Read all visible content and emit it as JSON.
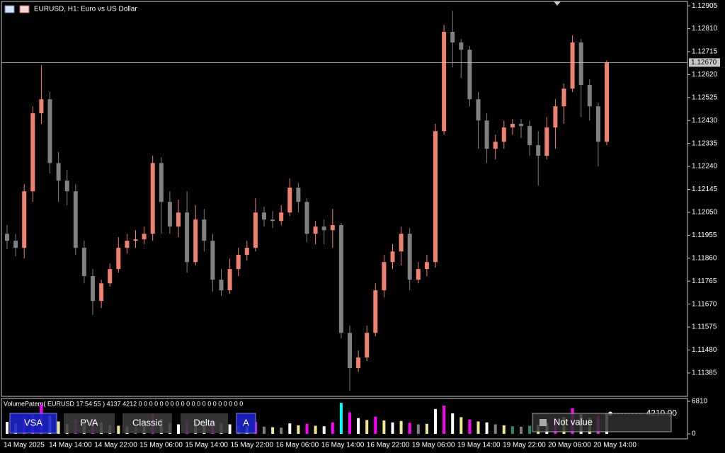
{
  "header": {
    "title": "EURUSD, H1:  Euro vs US Dollar"
  },
  "chart_data": {
    "type": "candlestick",
    "x_labels": [
      "14 May 2025",
      "14 May 14:00",
      "14 May 22:00",
      "15 May 06:00",
      "15 May 14:00",
      "15 May 22:00",
      "16 May 06:00",
      "16 May 14:00",
      "16 May 22:00",
      "19 May 06:00",
      "19 May 14:00",
      "19 May 22:00",
      "20 May 06:00",
      "20 May 14:00"
    ],
    "open": [
      1.11961,
      1.11932,
      1.11903,
      1.12137,
      1.1246,
      1.12518,
      1.12254,
      1.12181,
      1.12137,
      1.11903,
      1.11786,
      1.11683,
      1.11756,
      1.11815,
      1.11903,
      1.11932,
      1.11938,
      1.11961,
      1.12254,
      1.12093,
      1.11991,
      1.12049,
      1.11844,
      1.1202,
      1.11932,
      1.11771,
      1.11727,
      1.11815,
      1.11874,
      1.11903,
      1.12049,
      1.1202,
      1.12014,
      1.12049,
      1.12152,
      1.12093,
      1.11961,
      1.11991,
      1.11976,
      1.11997,
      1.11551,
      1.11405,
      1.11449,
      1.11551,
      1.11727,
      1.11844,
      1.11888,
      1.11961,
      1.11771,
      1.11815,
      1.11844,
      1.12386,
      1.12797,
      1.12753,
      1.12723,
      1.12518,
      1.1243,
      1.12313,
      1.12342,
      1.12401,
      1.12416,
      1.12407,
      1.12328,
      1.12284,
      1.12401,
      1.12489,
      1.12562,
      1.12753,
      1.12577,
      1.12489,
      1.12342
    ],
    "high": [
      1.11997,
      1.11961,
      1.12166,
      1.12489,
      1.12659,
      1.12548,
      1.12299,
      1.12225,
      1.12166,
      1.11932,
      1.11815,
      1.11771,
      1.11838,
      1.11947,
      1.11961,
      1.11976,
      1.11991,
      1.12284,
      1.12278,
      1.12137,
      1.12102,
      1.12137,
      1.12079,
      1.12064,
      1.11961,
      1.11815,
      1.11859,
      1.11903,
      1.11932,
      1.12108,
      1.12073,
      1.12055,
      1.12079,
      1.1219,
      1.12172,
      1.12108,
      1.12014,
      1.1202,
      1.12064,
      1.12006,
      1.11581,
      1.11478,
      1.11581,
      1.11756,
      1.11874,
      1.11918,
      1.11991,
      1.11985,
      1.11844,
      1.11874,
      1.12416,
      1.12826,
      1.12884,
      1.12767,
      1.12738,
      1.12548,
      1.1246,
      1.12371,
      1.1243,
      1.12436,
      1.12436,
      1.1243,
      1.12386,
      1.12445,
      1.12518,
      1.12583,
      1.12782,
      1.12767,
      1.126,
      1.12504,
      1.12679
    ],
    "low": [
      1.11897,
      1.11868,
      1.11859,
      1.12093,
      1.12416,
      1.12211,
      1.12093,
      1.12079,
      1.11874,
      1.11756,
      1.11625,
      1.11654,
      1.11742,
      1.118,
      1.11879,
      1.11903,
      1.11918,
      1.11932,
      1.11961,
      1.11961,
      1.11947,
      1.118,
      1.1183,
      1.11888,
      1.11721,
      1.11704,
      1.11713,
      1.11786,
      1.1185,
      1.11888,
      1.11991,
      1.11985,
      1.11997,
      1.12035,
      1.12049,
      1.11926,
      1.11918,
      1.11918,
      1.11903,
      1.11528,
      1.11311,
      1.1139,
      1.11434,
      1.11537,
      1.11698,
      1.11815,
      1.1183,
      1.11727,
      1.11756,
      1.11786,
      1.11821,
      1.12371,
      1.1265,
      1.12606,
      1.12489,
      1.12313,
      1.12254,
      1.12269,
      1.12313,
      1.12371,
      1.12357,
      1.12284,
      1.12161,
      1.12269,
      1.12313,
      1.12416,
      1.12548,
      1.12445,
      1.1243,
      1.1224,
      1.12328
    ],
    "close": [
      1.11932,
      1.11903,
      1.12137,
      1.1246,
      1.12518,
      1.12254,
      1.12181,
      1.12137,
      1.11903,
      1.11786,
      1.11683,
      1.11756,
      1.11815,
      1.11903,
      1.11932,
      1.11938,
      1.11961,
      1.12254,
      1.12093,
      1.11991,
      1.12049,
      1.11844,
      1.1202,
      1.11932,
      1.11771,
      1.11727,
      1.11815,
      1.11874,
      1.11903,
      1.12049,
      1.1202,
      1.12014,
      1.12049,
      1.12152,
      1.12093,
      1.11961,
      1.11991,
      1.11976,
      1.11997,
      1.11551,
      1.11405,
      1.11449,
      1.11551,
      1.11727,
      1.11844,
      1.11888,
      1.11961,
      1.11771,
      1.11815,
      1.11844,
      1.12386,
      1.12797,
      1.12753,
      1.12723,
      1.12518,
      1.1243,
      1.12313,
      1.12342,
      1.12401,
      1.12416,
      1.12407,
      1.12328,
      1.12284,
      1.12401,
      1.12489,
      1.12562,
      1.12753,
      1.12577,
      1.12489,
      1.12342,
      1.1267
    ],
    "up_color": "#f08070",
    "down_color": "#808080",
    "ylim": [
      1.11288,
      1.12923
    ],
    "yticks": [
      1.12905,
      {
        "value": 1.1281,
        "label": "1.12810"
      },
      1.12715,
      {
        "value": 1.1262,
        "label": "1.12620"
      },
      1.12525,
      {
        "value": 1.1243,
        "label": "1.12430"
      },
      1.12335,
      {
        "value": 1.1224,
        "label": "1.12240"
      },
      1.12145,
      {
        "value": 1.1205,
        "label": "1.12050"
      },
      1.11955,
      {
        "value": 1.1186,
        "label": "1.11860"
      },
      1.11765,
      {
        "value": 1.1167,
        "label": "1.11670"
      },
      1.11575,
      {
        "value": 1.1148,
        "label": "1.11480"
      },
      1.11385
    ],
    "current_price": {
      "value": 1.1267,
      "label": "1.12670"
    }
  },
  "indicator": {
    "label": "VolumePatern( EURUSD 17:54:55 ) 4137 4212 0 0 0 0 0 0 0 0 0 0 0 0 0 0 0 0 0 0 0 0",
    "volumes": [
      2500,
      2200,
      3400,
      4100,
      6200,
      3800,
      2600,
      2100,
      3000,
      2700,
      3300,
      2400,
      1800,
      1700,
      1500,
      1400,
      1600,
      4200,
      3100,
      2300,
      2000,
      2800,
      2400,
      1900,
      2600,
      2200,
      2000,
      1700,
      1600,
      2500,
      1500,
      1400,
      1300,
      2200,
      1800,
      2100,
      1700,
      1600,
      2400,
      6500,
      4500,
      3300,
      2900,
      3600,
      2800,
      2400,
      2700,
      2300,
      2000,
      2100,
      5200,
      5900,
      4300,
      3500,
      3000,
      2600,
      2400,
      2000,
      1800,
      1600,
      1500,
      1700,
      1900,
      2300,
      2700,
      3500,
      5400,
      4100,
      3300,
      3800,
      4210
    ],
    "colors": [
      "#ffffff",
      "#f0e68c",
      "#ff00ff",
      "#ff00ff",
      "#ff00ff",
      "#ffffff",
      "#f0e68c",
      "#ffffff",
      "#ff00ff",
      "#f0e68c",
      "#ff00ff",
      "#ffffff",
      "#f0e68c",
      "#f0e68c",
      "#ffffff",
      "#808080",
      "#f0e68c",
      "#ff00ff",
      "#ffffff",
      "#f0e68c",
      "#ffffff",
      "#ff00ff",
      "#f0e68c",
      "#ffffff",
      "#ff00ff",
      "#f0e68c",
      "#ffffff",
      "#808080",
      "#f0e68c",
      "#ff00ff",
      "#808080",
      "#f0e68c",
      "#808080",
      "#ffffff",
      "#f0e68c",
      "#ff00ff",
      "#f0e68c",
      "#ffffff",
      "#ff00ff",
      "#00ffff",
      "#ff00ff",
      "#ffffff",
      "#f0e68c",
      "#ff00ff",
      "#f0e68c",
      "#ffffff",
      "#f0e68c",
      "#ff00ff",
      "#808080",
      "#f0e68c",
      "#ffffff",
      "#ff00ff",
      "#ffffff",
      "#f0e68c",
      "#ff00ff",
      "#f0e68c",
      "#ffffff",
      "#808080",
      "#f0e68c",
      "#2e8b57",
      "#808080",
      "#2e8b57",
      "#f0e68c",
      "#ffffff",
      "#ff00ff",
      "#f0e68c",
      "#ff00ff",
      "#ffffff",
      "#f0e68c",
      "#ff00ff",
      "#ffffff"
    ],
    "ylim": [
      0,
      6810
    ],
    "yticks": [
      6810,
      0
    ],
    "buttons": [
      "VSA",
      "PVA",
      "Classic",
      "Delta",
      "A"
    ],
    "status": "Not value",
    "last_value": {
      "value": 4210,
      "label": "4210.00"
    }
  }
}
